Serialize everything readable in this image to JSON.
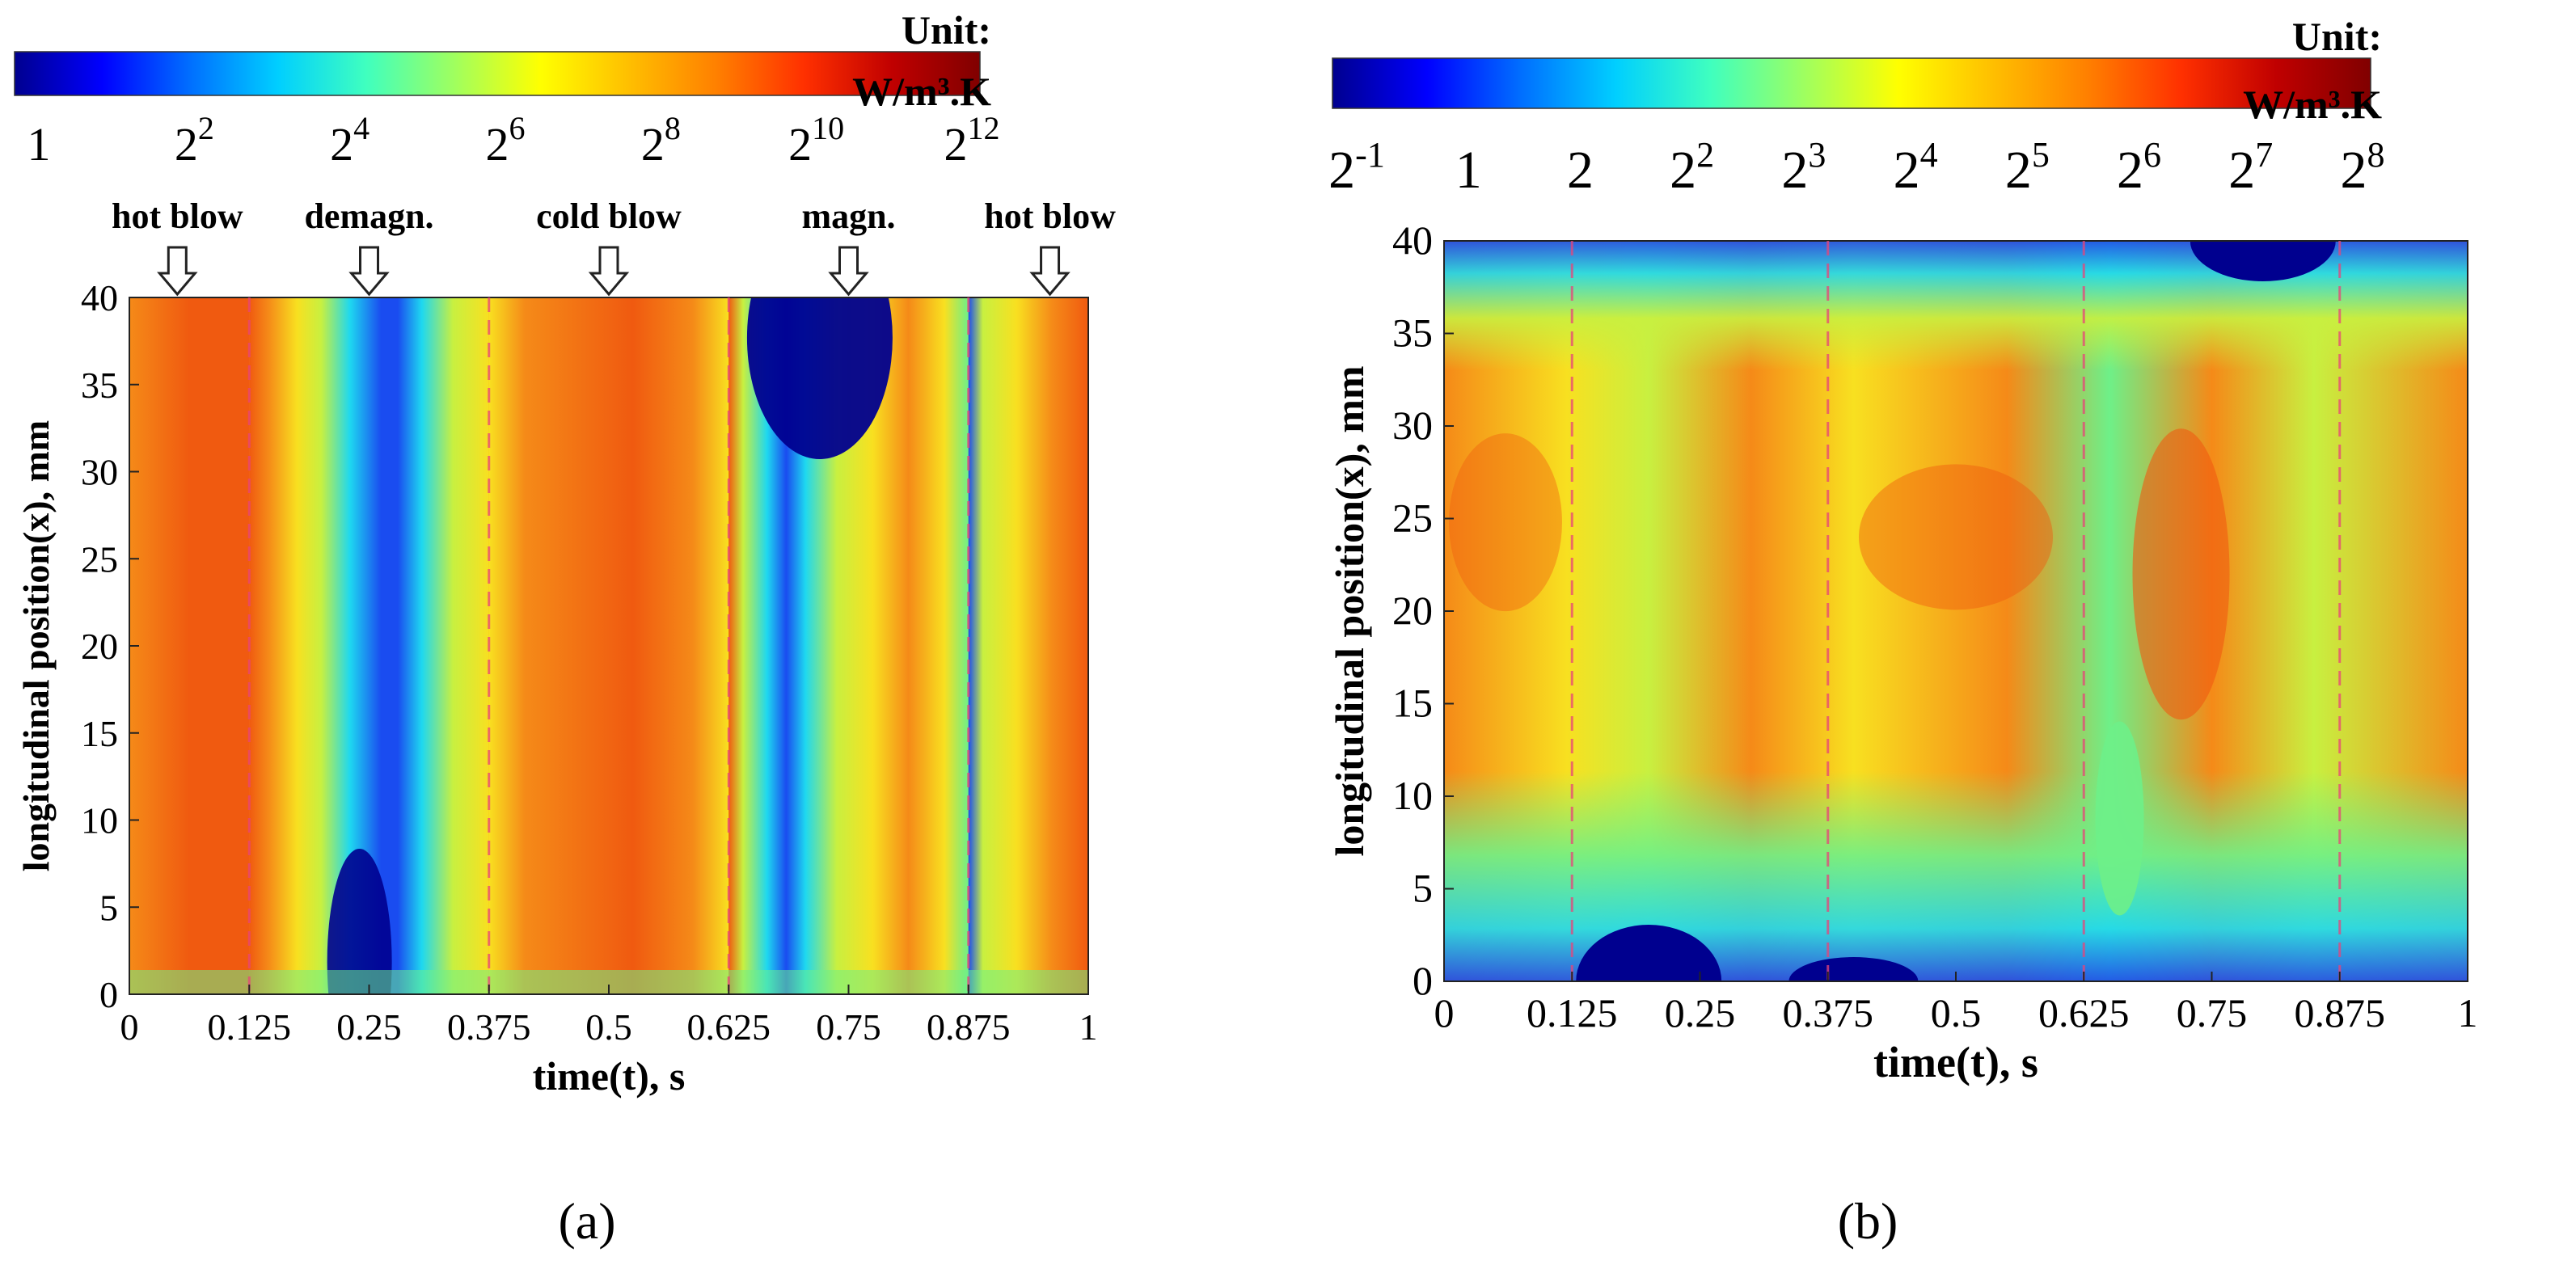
{
  "colormap": [
    "#00008f",
    "#0000ff",
    "#006fff",
    "#00cfff",
    "#3fffbf",
    "#9fff5f",
    "#ffff00",
    "#ffbf00",
    "#ff8000",
    "#ff3000",
    "#c00000",
    "#800000"
  ],
  "chart_data": [
    {
      "id": "a",
      "type": "heatmap",
      "caption": "(a)",
      "xlabel": "time(t), s",
      "ylabel": "longitudinal position(x), mm",
      "xlim": [
        0,
        1
      ],
      "ylim": [
        0,
        40
      ],
      "xticks": [
        "0",
        "0.125",
        "0.25",
        "0.375",
        "0.5",
        "0.625",
        "0.75",
        "0.875",
        "1"
      ],
      "yticks": [
        "0",
        "5",
        "10",
        "15",
        "20",
        "25",
        "30",
        "35",
        "40"
      ],
      "colorbar": {
        "unit_title": "Unit:",
        "unit": "W/m³.K",
        "ticks": [
          {
            "base": "1",
            "exp": ""
          },
          {
            "base": "2",
            "exp": "2"
          },
          {
            "base": "2",
            "exp": "4"
          },
          {
            "base": "2",
            "exp": "6"
          },
          {
            "base": "2",
            "exp": "8"
          },
          {
            "base": "2",
            "exp": "10"
          },
          {
            "base": "2",
            "exp": "12"
          }
        ]
      },
      "phases": [
        {
          "label": "hot blow",
          "t": 0.05
        },
        {
          "label": "demagn.",
          "t": 0.25
        },
        {
          "label": "cold blow",
          "t": 0.5
        },
        {
          "label": "magn.",
          "t": 0.75
        },
        {
          "label": "hot blow",
          "t": 0.96
        }
      ],
      "phase_boundaries": [
        0.125,
        0.375,
        0.625,
        0.875
      ],
      "value_range": [
        0,
        12
      ]
    },
    {
      "id": "b",
      "type": "heatmap",
      "caption": "(b)",
      "xlabel": "time(t), s",
      "ylabel": "longitudinal position(x), mm",
      "xlim": [
        0,
        1
      ],
      "ylim": [
        0,
        40
      ],
      "xticks": [
        "0",
        "0.125",
        "0.25",
        "0.375",
        "0.5",
        "0.625",
        "0.75",
        "0.875",
        "1"
      ],
      "yticks": [
        "0",
        "5",
        "10",
        "15",
        "20",
        "25",
        "30",
        "35",
        "40"
      ],
      "colorbar": {
        "unit_title": "Unit:",
        "unit": "W/m³.K",
        "ticks": [
          {
            "base": "2",
            "exp": "-1"
          },
          {
            "base": "1",
            "exp": ""
          },
          {
            "base": "2",
            "exp": ""
          },
          {
            "base": "2",
            "exp": "2"
          },
          {
            "base": "2",
            "exp": "3"
          },
          {
            "base": "2",
            "exp": "4"
          },
          {
            "base": "2",
            "exp": "5"
          },
          {
            "base": "2",
            "exp": "6"
          },
          {
            "base": "2",
            "exp": "7"
          },
          {
            "base": "2",
            "exp": "8"
          }
        ]
      },
      "phases": [],
      "phase_boundaries": [
        0.125,
        0.375,
        0.625,
        0.875
      ],
      "value_range": [
        -1,
        8
      ]
    }
  ]
}
